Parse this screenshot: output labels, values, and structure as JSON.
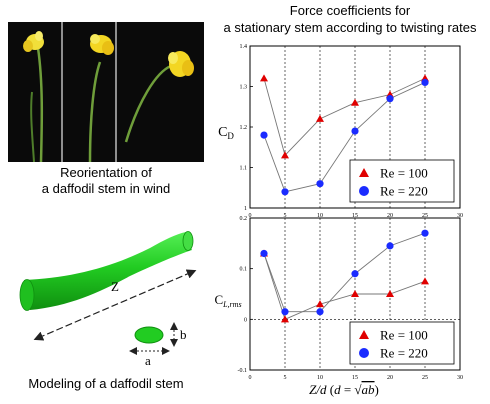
{
  "title": {
    "line1": "Force coefficients for",
    "line2": "a stationary stem according to twisting rates"
  },
  "left": {
    "photo_caption_line1": "Reorientation of",
    "photo_caption_line2": "a daffodil stem in wind",
    "model_caption": "Modeling of a daffodil stem",
    "axis_z": "Z",
    "axis_a": "a",
    "axis_b": "b"
  },
  "colors": {
    "re100": "#e00000",
    "re220": "#1a2bff",
    "stem": "#22cc22"
  },
  "chart_data": [
    {
      "type": "line",
      "ylabel": "C_D",
      "xlim": [
        0,
        30
      ],
      "ylim": [
        1.0,
        1.4
      ],
      "xticks": [
        0,
        5,
        10,
        15,
        20,
        25,
        30
      ],
      "yticks": [
        1,
        1.1,
        1.2,
        1.3,
        1.4
      ],
      "xtick_labels": [
        "0",
        "5",
        "10",
        "15",
        "20",
        "25",
        "30"
      ],
      "ytick_labels": [
        "1",
        "1.1",
        "1.2",
        "1.3",
        "1.4"
      ],
      "x": [
        2,
        5,
        10,
        15,
        20,
        25
      ],
      "series": [
        {
          "name": "Re = 100",
          "marker": "triangle",
          "values": [
            1.32,
            1.13,
            1.22,
            1.26,
            1.28,
            1.32
          ]
        },
        {
          "name": "Re = 220",
          "marker": "circle",
          "values": [
            1.18,
            1.04,
            1.06,
            1.19,
            1.27,
            1.31
          ]
        }
      ],
      "legend": "bottom-right",
      "grid": "vertical dashed"
    },
    {
      "type": "line",
      "ylabel": "C_L,rms",
      "xlabel": "Z/d (d = √ab)",
      "xlim": [
        0,
        30
      ],
      "ylim": [
        -0.1,
        0.2
      ],
      "xticks": [
        0,
        5,
        10,
        15,
        20,
        25,
        30
      ],
      "yticks": [
        -0.1,
        0,
        0.1,
        0.2
      ],
      "xtick_labels": [
        "0",
        "5",
        "10",
        "15",
        "20",
        "25",
        "30"
      ],
      "ytick_labels": [
        "-0.1",
        "0",
        "0.1",
        "0.2"
      ],
      "x": [
        2,
        5,
        10,
        15,
        20,
        25
      ],
      "series": [
        {
          "name": "Re = 100",
          "marker": "triangle",
          "values": [
            0.13,
            0.0,
            0.03,
            0.05,
            0.05,
            0.075
          ]
        },
        {
          "name": "Re = 220",
          "marker": "circle",
          "values": [
            0.13,
            0.015,
            0.015,
            0.09,
            0.145,
            0.17
          ]
        }
      ],
      "legend": "bottom-right",
      "grid": "vertical dashed"
    }
  ]
}
